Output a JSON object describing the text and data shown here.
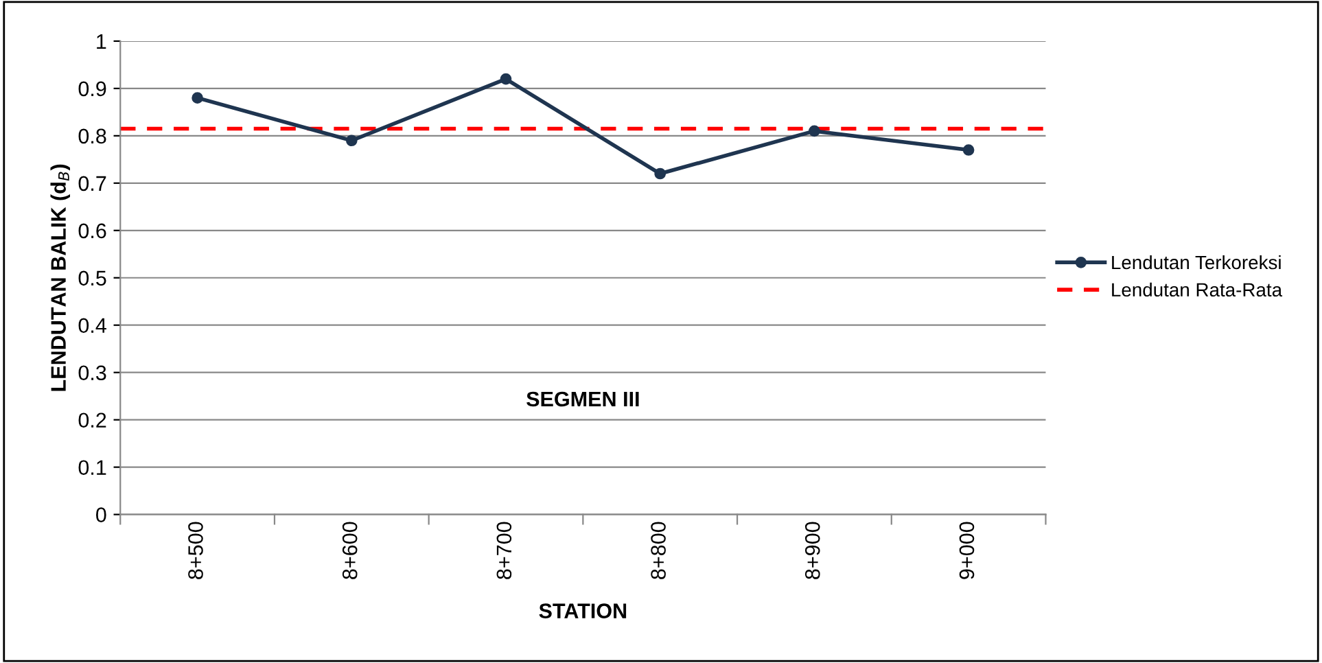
{
  "chart_data": {
    "type": "line",
    "xlabel": "STATION",
    "ylabel": "LENDUTAN BALIK (d$_{B}$)",
    "categories": [
      "8+500",
      "8+600",
      "8+700",
      "8+800",
      "8+900",
      "9+000"
    ],
    "series": [
      {
        "name": "Lendutan Terkoreksi",
        "color": "#1f3550",
        "values": [
          0.88,
          0.79,
          0.92,
          0.72,
          0.81,
          0.77
        ]
      }
    ],
    "ref_lines": [
      {
        "axis": "y",
        "value": 0.815,
        "label": "Lendutan Rata-Rata",
        "color": "#ff0000",
        "line_style": "dashed"
      }
    ],
    "annotations": [
      "SEGMEN III"
    ],
    "ylim": [
      0,
      1
    ],
    "yticks": [
      0,
      0.1,
      0.2,
      0.3,
      0.4,
      0.5,
      0.6,
      0.7,
      0.8,
      0.9,
      1
    ],
    "grid": "y",
    "legend": "right",
    "marker": "circle",
    "line_style": "solid"
  }
}
